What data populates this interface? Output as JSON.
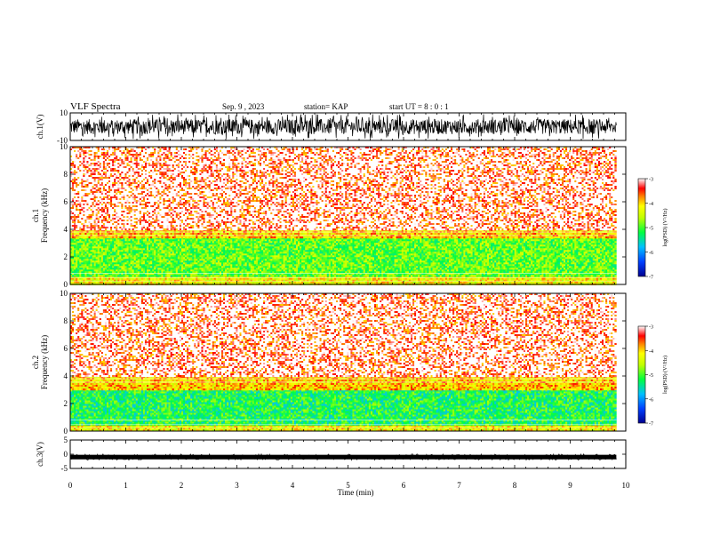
{
  "header": {
    "title": "VLF Spectra",
    "date": "Sep. 9 , 2023",
    "station": "station= KAP",
    "start": "start UT =  8 : 0  : 1"
  },
  "chart_data": [
    {
      "type": "line",
      "panel": "waveform-ch1",
      "ylabel": "ch.1(V)",
      "ylim": [
        -10,
        10
      ],
      "yticks": [
        "10",
        "-10"
      ],
      "xlim": [
        0,
        10
      ],
      "data_end": 9.83,
      "signal": "dense noise, mostly within -6..6 V with spikes near +/-8 V"
    },
    {
      "type": "heatmap",
      "panel": "spectrogram-ch1",
      "ylabel": "ch.1\nFrequency (kHz)",
      "ylim": [
        0,
        10
      ],
      "yticks": [
        "0",
        "2",
        "4",
        "6",
        "8",
        "10"
      ],
      "xlim": [
        0,
        10
      ],
      "data_end": 9.83,
      "bands": [
        {
          "from": 0,
          "to": 0.6,
          "level": -4.2
        },
        {
          "from": 0.6,
          "to": 3.4,
          "level": -4.9,
          "note": "yellow/green mix with red streaks"
        },
        {
          "from": 3.4,
          "to": 4.0,
          "level": -4.0
        },
        {
          "from": 4.0,
          "to": 10,
          "level": -3.3,
          "note": "red speckle on white with vertical streaks"
        }
      ],
      "colorbar": {
        "label": "log(PSD) (V²/Hz)",
        "ticks": [
          "-3",
          "-4",
          "-5",
          "-6",
          "-7"
        ],
        "range": [
          -7,
          -3
        ]
      }
    },
    {
      "type": "heatmap",
      "panel": "spectrogram-ch2",
      "ylabel": "ch.2\nFrequency (kHz)",
      "ylim": [
        0,
        10
      ],
      "yticks": [
        "0",
        "2",
        "4",
        "6",
        "8",
        "10"
      ],
      "xlim": [
        0,
        10
      ],
      "data_end": 9.83,
      "bands": [
        {
          "from": 0,
          "to": 0.5,
          "level": -4.2
        },
        {
          "from": 0.5,
          "to": 3.0,
          "level": -5.2,
          "note": "green dominant with yellow and red"
        },
        {
          "from": 3.0,
          "to": 4.0,
          "level": -4.0
        },
        {
          "from": 4.0,
          "to": 10,
          "level": -3.3,
          "note": "red speckle on white with vertical streaks"
        }
      ],
      "colorbar": {
        "label": "log(PSD) (V²/Hz)",
        "ticks": [
          "-3",
          "-4",
          "-5",
          "-6",
          "-7"
        ],
        "range": [
          -7,
          -3
        ]
      }
    },
    {
      "type": "line",
      "panel": "waveform-ch3",
      "ylabel": "ch.3(V)",
      "ylim": [
        -5,
        5
      ],
      "yticks": [
        "5",
        "0",
        "-5"
      ],
      "xlim": [
        0,
        10
      ],
      "data_end": 9.83,
      "signal": "narrow band of noise around -1 V"
    }
  ],
  "xaxis": {
    "label": "Time  (min)",
    "ticks": [
      "0",
      "1",
      "2",
      "3",
      "4",
      "5",
      "6",
      "7",
      "8",
      "9",
      "10"
    ]
  },
  "colors": {
    "waveform": "#000000",
    "spectrum_low": "#000099",
    "spectrum_high": "#ff2020"
  }
}
